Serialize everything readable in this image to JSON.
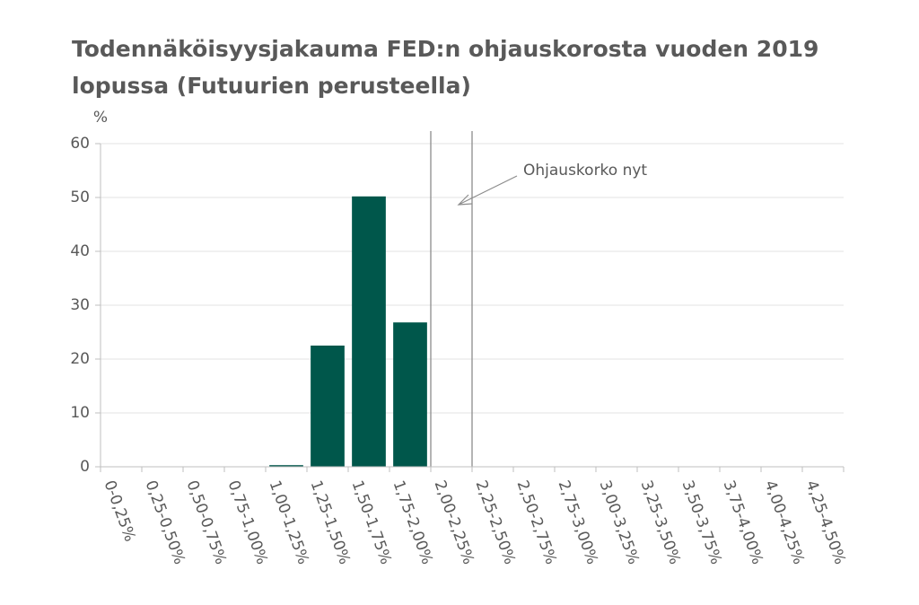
{
  "chart_data": {
    "type": "bar",
    "title": [
      "Todennäköisyysjakauma FED:n ohjauskorosta vuoden 2019",
      "lopussa (Futuurien perusteella)"
    ],
    "y_label": "%",
    "annotation": "Ohjauskorko nyt",
    "categories": [
      "0-0,25%",
      "0,25-0,50%",
      "0,50-0,75%",
      "0,75-1,00%",
      "1,00-1,25%",
      "1,25-1,50%",
      "1,50-1,75%",
      "1,75-2,00%",
      "2,00-2,25%",
      "2,25-2,50%",
      "2,50-2,75%",
      "2,75-3,00%",
      "3,00-3,25%",
      "3,25-3,50%",
      "3,50-3,75%",
      "3,75-4,00%",
      "4,00-4,25%",
      "4,25-4,50%"
    ],
    "values": [
      0,
      0,
      0,
      0,
      0.3,
      22.5,
      50.2,
      26.8,
      0,
      0,
      0,
      0,
      0,
      0,
      0,
      0,
      0,
      0
    ],
    "color": "#00574b",
    "ylim": [
      0,
      60
    ],
    "yticks": [
      0,
      10,
      20,
      30,
      40,
      50,
      60
    ],
    "grid": true
  }
}
